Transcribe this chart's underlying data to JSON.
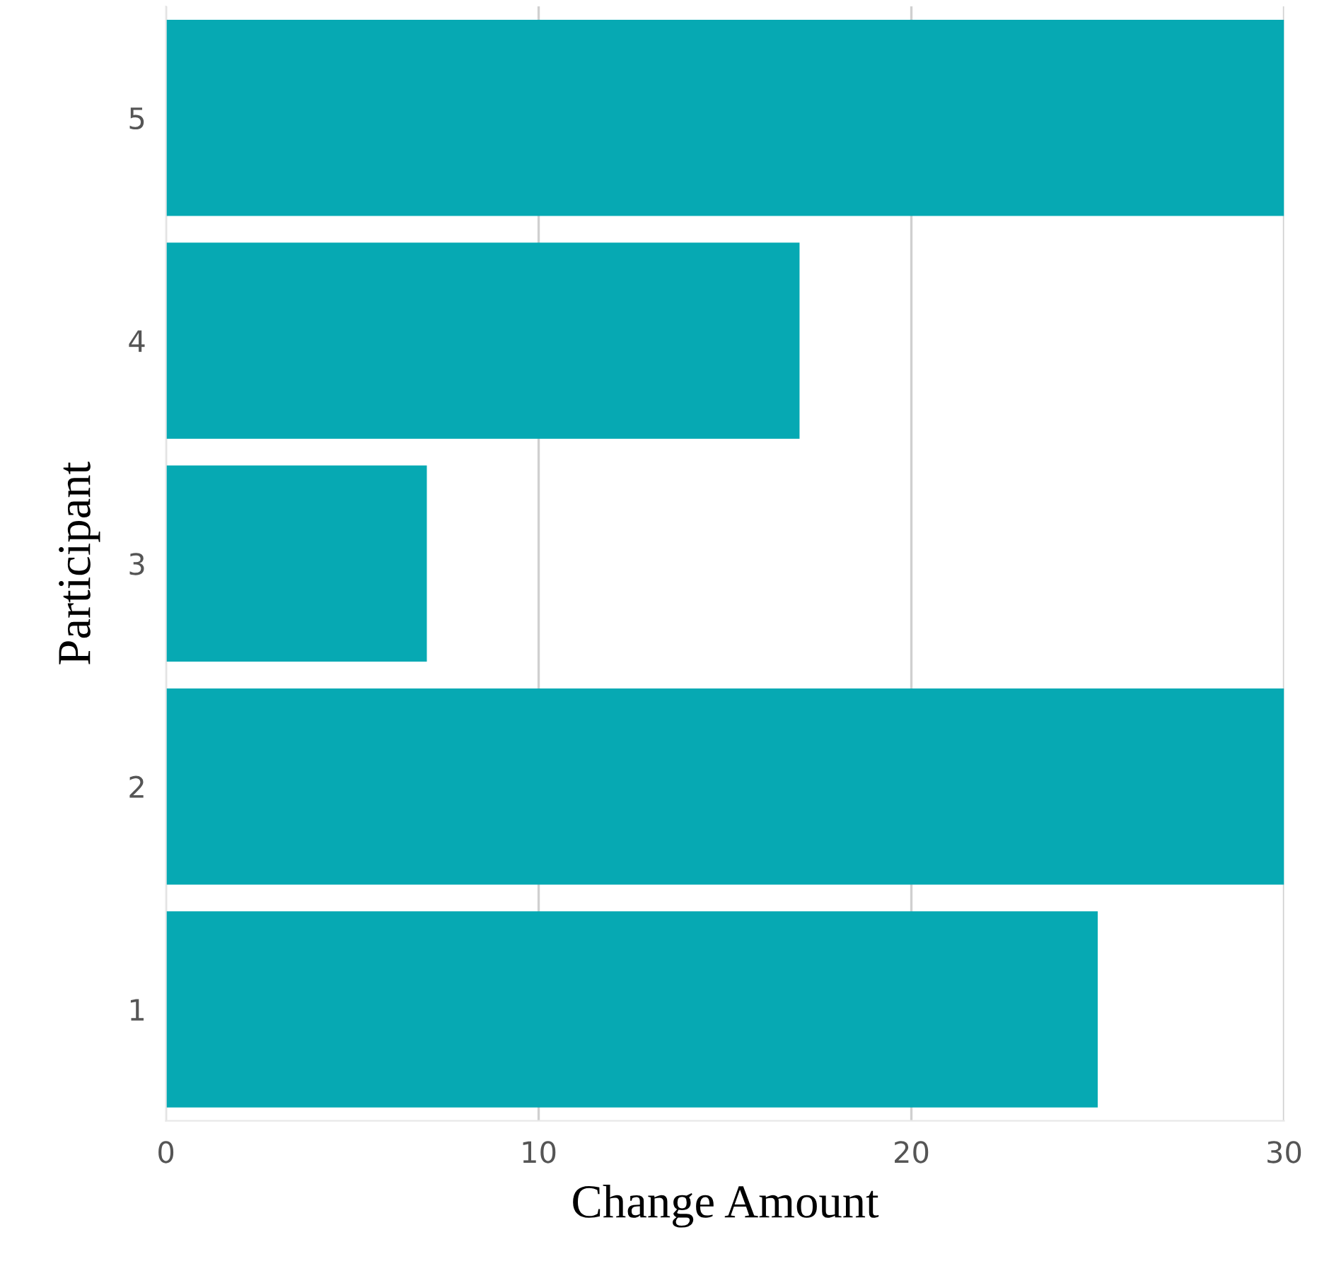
{
  "chart_data": {
    "type": "bar",
    "orientation": "horizontal",
    "xlabel": "Change Amount",
    "ylabel": "Participant",
    "categories": [
      "5",
      "4",
      "3",
      "2",
      "1"
    ],
    "values": [
      30,
      17,
      7,
      30,
      25
    ],
    "color": "#06a9b3",
    "xlim": [
      0,
      30
    ],
    "xticks": [
      0,
      10,
      20,
      30
    ],
    "grid": "x"
  }
}
